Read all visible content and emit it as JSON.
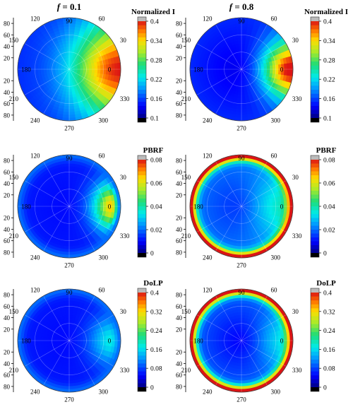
{
  "figure": {
    "column_titles": [
      {
        "italic": "f",
        "rest": " = 0.1"
      },
      {
        "italic": "f",
        "rest": " = 0.8"
      }
    ],
    "zenith_ticks_upper": [
      "80",
      "60",
      "40",
      "20"
    ],
    "zenith_ticks_lower": [
      "20",
      "40",
      "60",
      "80"
    ],
    "azimuth_labels": [
      "0",
      "30",
      "60",
      "90",
      "120",
      "150",
      "180",
      "210",
      "240",
      "270",
      "300",
      "330"
    ]
  },
  "chart_data": [
    {
      "type": "heatmap",
      "projection": "polar",
      "title": "Normalized I",
      "column": "f = 0.1",
      "colorbar_ticks": [
        "0.4",
        "0.34",
        "0.28",
        "0.22",
        "0.16",
        "0.1"
      ],
      "color_range": [
        0.1,
        0.4
      ],
      "field": {
        "base": 0.15,
        "center": 0.145,
        "peak_value": 0.4,
        "peak_azimuth_deg": 0,
        "peak_zenith_deg": 90,
        "peak_width_deg": 60
      }
    },
    {
      "type": "heatmap",
      "projection": "polar",
      "title": "Normalized I",
      "column": "f = 0.8",
      "colorbar_ticks": [
        "0.4",
        "0.34",
        "0.28",
        "0.22",
        "0.16",
        "0.1"
      ],
      "color_range": [
        0.1,
        0.4
      ],
      "field": {
        "base": 0.15,
        "center": 0.125,
        "peak_value": 0.42,
        "peak_azimuth_deg": 0,
        "peak_zenith_deg": 90,
        "peak_width_deg": 35
      }
    },
    {
      "type": "heatmap",
      "projection": "polar",
      "title": "PBRF",
      "column": "f = 0.1",
      "colorbar_ticks": [
        "0.08",
        "0.06",
        "0.04",
        "0.02",
        "0"
      ],
      "color_range": [
        0,
        0.08
      ],
      "field": {
        "base": 0.012,
        "center": 0.01,
        "peak_value": 0.08,
        "peak_azimuth_deg": 0,
        "peak_zenith_deg": 90,
        "peak_width_deg": 30,
        "rim_value": 0.02
      }
    },
    {
      "type": "heatmap",
      "projection": "polar",
      "title": "PBRF",
      "column": "f = 0.8",
      "colorbar_ticks": [
        "0.08",
        "0.06",
        "0.04",
        "0.02",
        "0"
      ],
      "color_range": [
        0,
        0.08
      ],
      "field": {
        "base": 0.022,
        "center": 0.012,
        "peak_value": 0.04,
        "peak_azimuth_deg": 0,
        "peak_zenith_deg": 70,
        "peak_width_deg": 40,
        "rim_value": 0.085
      }
    },
    {
      "type": "heatmap",
      "projection": "polar",
      "title": "DoLP",
      "column": "f = 0.1",
      "colorbar_ticks": [
        "0.4",
        "0.32",
        "0.24",
        "0.16",
        "0.08",
        "0"
      ],
      "color_range": [
        0,
        0.4
      ],
      "field": {
        "base": 0.06,
        "center": 0.05,
        "peak_value": 0.18,
        "peak_azimuth_deg": 0,
        "peak_zenith_deg": 80,
        "peak_width_deg": 30,
        "rim_value": 0.1
      }
    },
    {
      "type": "heatmap",
      "projection": "polar",
      "title": "DoLP",
      "column": "f = 0.8",
      "colorbar_ticks": [
        "0.4",
        "0.32",
        "0.24",
        "0.16",
        "0.08",
        "0"
      ],
      "color_range": [
        0,
        0.4
      ],
      "field": {
        "base": 0.1,
        "center": 0.04,
        "peak_value": 0.18,
        "peak_azimuth_deg": 0,
        "peak_zenith_deg": 75,
        "peak_width_deg": 35,
        "rim_value": 0.42
      }
    }
  ]
}
